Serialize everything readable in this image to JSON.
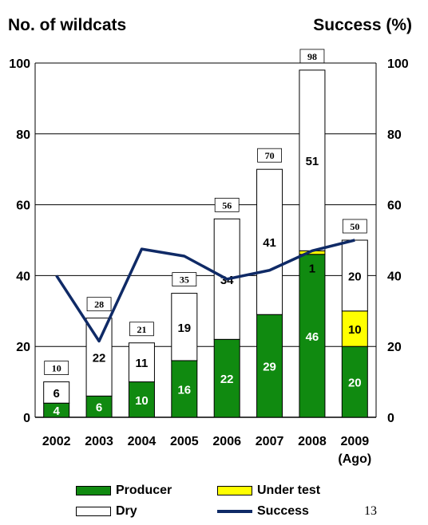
{
  "chart_data": {
    "type": "bar",
    "stacked": true,
    "categories": [
      "2002",
      "2003",
      "2004",
      "2005",
      "2006",
      "2007",
      "2008",
      "2009"
    ],
    "category_sublabels": [
      "",
      "",
      "",
      "",
      "",
      "",
      "",
      "(Ago)"
    ],
    "series": [
      {
        "name": "Producer",
        "color": "#108A10",
        "values": [
          4,
          6,
          10,
          16,
          22,
          29,
          46,
          20
        ]
      },
      {
        "name": "Under test",
        "color": "#FFFF00",
        "values": [
          0,
          0,
          0,
          0,
          0,
          0,
          1,
          10
        ]
      },
      {
        "name": "Dry",
        "color": "#FFFFFF",
        "values": [
          6,
          22,
          11,
          19,
          34,
          41,
          51,
          20
        ]
      }
    ],
    "totals": [
      10,
      28,
      21,
      35,
      56,
      70,
      98,
      50
    ],
    "line_series": {
      "name": "Success",
      "color": "#0F2A66",
      "axis": "right",
      "values": [
        40,
        21.5,
        47.5,
        45.5,
        39,
        41.5,
        47,
        50
      ]
    },
    "ylabel": "No. of wildcats",
    "y2label": "Success (%)",
    "ylim": [
      0,
      100
    ],
    "y2lim": [
      0,
      100
    ],
    "yticks": [
      0,
      20,
      40,
      60,
      80,
      100
    ],
    "grid": true,
    "legend_position": "bottom",
    "legend": [
      {
        "label": "Producer",
        "kind": "box",
        "color": "#108A10"
      },
      {
        "label": "Under test",
        "kind": "box",
        "color": "#FFFF00"
      },
      {
        "label": "Dry",
        "kind": "box",
        "color": "#FFFFFF"
      },
      {
        "label": "Success",
        "kind": "line",
        "color": "#0F2A66"
      }
    ]
  },
  "page_number": "13"
}
